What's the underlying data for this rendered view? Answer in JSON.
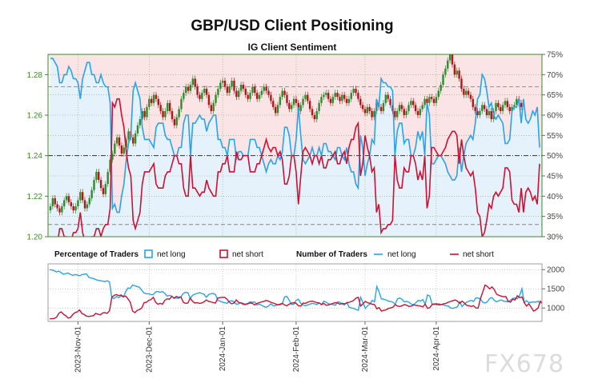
{
  "title": "GBP/USD Client Positioning",
  "subtitle": "IG Client Sentiment",
  "watermark": "FX678",
  "colors": {
    "net_long": "#2aa3e8",
    "net_short": "#cc1133",
    "bg_long": "#e6f2fb",
    "bg_short": "#fbe4e6",
    "candle_up": "#2e8b2e",
    "candle_down": "#b01818",
    "axis_green": "#3d8a2a"
  },
  "legend": {
    "percentage_title": "Percentage of Traders",
    "percentage_long": "net long",
    "percentage_short": "net short",
    "number_title": "Number of Traders",
    "number_long": "net long",
    "number_short": "net short"
  },
  "x_dates": [
    "2023-Nov-01",
    "2023-Dec-01",
    "2024-Jan-01",
    "2024-Feb-01",
    "2024-Mar-01",
    "2024-Apr-01"
  ],
  "chart_data": [
    {
      "type": "line",
      "name": "price_and_percentage",
      "y_left": {
        "ticks": [
          "1.20",
          "1.22",
          "1.24",
          "1.26",
          "1.28"
        ],
        "range": [
          1.2,
          1.29
        ]
      },
      "y_right": {
        "ticks": [
          "30%",
          "35%",
          "40%",
          "45%",
          "50%",
          "55%",
          "60%",
          "65%",
          "70%",
          "75%"
        ],
        "range": [
          30,
          75
        ]
      },
      "reference_lines": {
        "pct_50": 50,
        "pct_33": 33,
        "pct_67": 67
      },
      "net_long_pct": [
        74,
        74,
        73,
        72,
        68,
        68,
        70,
        70,
        72,
        71,
        69,
        69,
        68,
        64,
        69,
        71,
        73,
        73,
        70,
        70,
        68,
        68,
        70,
        68,
        67,
        67,
        63,
        37,
        38,
        36,
        36,
        40,
        43,
        49,
        53,
        55,
        66,
        68,
        66,
        64,
        57,
        54,
        54,
        54,
        53,
        52,
        57,
        58,
        58,
        58,
        55,
        54,
        54,
        52,
        50,
        50,
        52,
        52,
        58,
        60,
        60,
        50,
        58,
        58,
        59,
        60,
        59,
        59,
        56,
        58,
        59,
        60,
        60,
        54,
        54,
        52,
        52,
        50,
        54,
        54,
        54,
        49,
        51,
        51,
        50,
        50,
        50,
        54,
        54,
        54,
        52,
        52,
        50,
        48,
        46,
        48,
        49,
        48,
        48,
        50,
        49,
        51,
        57,
        57,
        55,
        50,
        50,
        54,
        62,
        55,
        49,
        48,
        49,
        50,
        52,
        50,
        50,
        52,
        50,
        53,
        53,
        51,
        51,
        50,
        49,
        52,
        52,
        50,
        49,
        52,
        48,
        46,
        46,
        43,
        42,
        55,
        52,
        45,
        48,
        50,
        54,
        53,
        64,
        62,
        69,
        68,
        68,
        67,
        67,
        66,
        50,
        56,
        58,
        58,
        53,
        54,
        54,
        50,
        50,
        52,
        56,
        54,
        56,
        50,
        63,
        60,
        48,
        48,
        49,
        50,
        50,
        49,
        48,
        46,
        45,
        44,
        44,
        45,
        52,
        46,
        50,
        53,
        54,
        55,
        54,
        58,
        64,
        65,
        70,
        69,
        66,
        62,
        63,
        60,
        59,
        60,
        59,
        58,
        53,
        53,
        54,
        61,
        62,
        62,
        64,
        58,
        64,
        59,
        58,
        59,
        61,
        60,
        62,
        52
      ],
      "net_short_pct": [
        26,
        26,
        27,
        28,
        32,
        32,
        30,
        30,
        28,
        29,
        31,
        31,
        32,
        36,
        31,
        29,
        27,
        27,
        30,
        30,
        32,
        32,
        30,
        32,
        33,
        33,
        37,
        63,
        62,
        64,
        64,
        60,
        57,
        51,
        47,
        45,
        34,
        32,
        34,
        36,
        43,
        46,
        46,
        46,
        47,
        48,
        43,
        42,
        42,
        42,
        45,
        46,
        46,
        48,
        50,
        50,
        48,
        48,
        42,
        40,
        40,
        50,
        42,
        42,
        41,
        40,
        41,
        41,
        44,
        42,
        41,
        40,
        40,
        46,
        46,
        48,
        48,
        50,
        46,
        46,
        46,
        51,
        49,
        49,
        50,
        50,
        50,
        46,
        46,
        46,
        48,
        48,
        50,
        52,
        54,
        52,
        51,
        52,
        52,
        50,
        51,
        49,
        43,
        43,
        45,
        50,
        50,
        46,
        38,
        45,
        51,
        52,
        51,
        50,
        48,
        50,
        50,
        48,
        50,
        47,
        47,
        49,
        49,
        50,
        51,
        48,
        48,
        50,
        51,
        48,
        52,
        54,
        54,
        57,
        58,
        45,
        48,
        55,
        52,
        50,
        46,
        47,
        36,
        38,
        31,
        32,
        32,
        33,
        33,
        34,
        50,
        44,
        42,
        42,
        47,
        46,
        46,
        50,
        50,
        48,
        44,
        46,
        44,
        50,
        37,
        40,
        52,
        52,
        51,
        50,
        50,
        51,
        52,
        54,
        55,
        56,
        56,
        55,
        48,
        54,
        50,
        47,
        46,
        45,
        46,
        42,
        36,
        35,
        30,
        31,
        34,
        38,
        37,
        40,
        41,
        40,
        41,
        42,
        47,
        47,
        46,
        39,
        38,
        38,
        36,
        42,
        36,
        41,
        42,
        41,
        39,
        40,
        38,
        48
      ],
      "price_close": [
        1.215,
        1.219,
        1.216,
        1.214,
        1.212,
        1.215,
        1.218,
        1.22,
        1.217,
        1.215,
        1.213,
        1.215,
        1.218,
        1.222,
        1.218,
        1.214,
        1.216,
        1.219,
        1.223,
        1.228,
        1.232,
        1.228,
        1.224,
        1.221,
        1.226,
        1.232,
        1.238,
        1.241,
        1.246,
        1.249,
        1.245,
        1.241,
        1.244,
        1.248,
        1.252,
        1.249,
        1.246,
        1.251,
        1.255,
        1.258,
        1.262,
        1.259,
        1.264,
        1.268,
        1.266,
        1.27,
        1.268,
        1.265,
        1.262,
        1.259,
        1.262,
        1.266,
        1.262,
        1.258,
        1.255,
        1.259,
        1.263,
        1.268,
        1.271,
        1.274,
        1.272,
        1.275,
        1.278,
        1.274,
        1.27,
        1.268,
        1.271,
        1.273,
        1.27,
        1.265,
        1.262,
        1.266,
        1.27,
        1.273,
        1.276,
        1.277,
        1.274,
        1.271,
        1.274,
        1.277,
        1.272,
        1.269,
        1.272,
        1.275,
        1.273,
        1.27,
        1.268,
        1.271,
        1.274,
        1.271,
        1.268,
        1.27,
        1.272,
        1.274,
        1.272,
        1.27,
        1.267,
        1.264,
        1.261,
        1.265,
        1.269,
        1.272,
        1.27,
        1.266,
        1.263,
        1.265,
        1.268,
        1.266,
        1.262,
        1.265,
        1.268,
        1.27,
        1.267,
        1.263,
        1.26,
        1.258,
        1.262,
        1.266,
        1.269,
        1.27,
        1.271,
        1.268,
        1.266,
        1.269,
        1.271,
        1.269,
        1.267,
        1.27,
        1.268,
        1.266,
        1.268,
        1.271,
        1.273,
        1.271,
        1.268,
        1.265,
        1.263,
        1.261,
        1.264,
        1.262,
        1.259,
        1.262,
        1.266,
        1.264,
        1.262,
        1.266,
        1.27,
        1.268,
        1.265,
        1.262,
        1.259,
        1.262,
        1.265,
        1.263,
        1.26,
        1.262,
        1.265,
        1.267,
        1.265,
        1.262,
        1.26,
        1.263,
        1.265,
        1.268,
        1.266,
        1.269,
        1.268,
        1.266,
        1.269,
        1.272,
        1.275,
        1.28,
        1.283,
        1.287,
        1.29,
        1.285,
        1.28,
        1.282,
        1.278,
        1.273,
        1.27,
        1.272,
        1.27,
        1.268,
        1.264,
        1.262,
        1.26,
        1.262,
        1.265,
        1.263,
        1.26,
        1.262,
        1.258,
        1.262,
        1.266,
        1.264,
        1.262,
        1.265,
        1.267,
        1.264,
        1.262,
        1.264,
        1.265,
        1.268,
        1.266,
        1.264
      ]
    },
    {
      "type": "line",
      "name": "number_of_traders",
      "y": {
        "ticks": [
          "1000",
          "1500",
          "2000"
        ],
        "range": [
          650,
          2150
        ]
      },
      "net_long": [
        2000,
        1990,
        1970,
        1940,
        1960,
        1920,
        1880,
        1900,
        1910,
        1880,
        1850,
        1870,
        1860,
        1840,
        1870,
        1880,
        1890,
        1800,
        1780,
        1770,
        1740,
        1720,
        1710,
        1700,
        1690,
        1710,
        1680,
        1260,
        1250,
        1300,
        1270,
        1310,
        1280,
        1430,
        1520,
        1510,
        1600,
        1580,
        1560,
        1540,
        1460,
        1390,
        1370,
        1370,
        1350,
        1350,
        1420,
        1430,
        1410,
        1430,
        1380,
        1310,
        1330,
        1310,
        1250,
        1260,
        1250,
        1290,
        1380,
        1410,
        1400,
        1250,
        1330,
        1360,
        1380,
        1400,
        1380,
        1360,
        1280,
        1350,
        1370,
        1380,
        1350,
        1200,
        1180,
        1150,
        1140,
        1120,
        1180,
        1190,
        1160,
        1100,
        1110,
        1140,
        1120,
        1100,
        1120,
        1160,
        1150,
        1160,
        1080,
        1100,
        1070,
        1040,
        1020,
        1050,
        1110,
        1060,
        1060,
        1090,
        1080,
        1110,
        1290,
        1300,
        1200,
        1090,
        1100,
        1200,
        1230,
        1120,
        1080,
        1060,
        1080,
        1100,
        1120,
        1110,
        1090,
        1140,
        1090,
        1180,
        1150,
        1110,
        1100,
        1090,
        1070,
        1160,
        1150,
        1100,
        1080,
        1150,
        1020,
        1000,
        990,
        960,
        940,
        1280,
        1140,
        990,
        1060,
        1100,
        1200,
        1160,
        1560,
        1420,
        1240,
        1230,
        1210,
        1180,
        1170,
        1150,
        1100,
        1240,
        1260,
        1220,
        1160,
        1170,
        1150,
        1100,
        1090,
        1140,
        1200,
        1180,
        1220,
        1100,
        1340,
        1310,
        1100,
        1110,
        1080,
        1110,
        1090,
        1080,
        1060,
        1050,
        1000,
        990,
        1010,
        1030,
        1160,
        1040,
        1100,
        1150,
        1180,
        1200,
        1170,
        1260,
        1260,
        1230,
        1150,
        1130,
        1160,
        1250,
        1270,
        1200,
        1160,
        1190,
        1210,
        1180,
        1170,
        1160,
        1200,
        1250,
        1260,
        1240,
        1330,
        1500,
        1140,
        1190,
        1140,
        1150,
        1160,
        1150,
        1180,
        1120
      ],
      "net_short": [
        720,
        720,
        730,
        760,
        860,
        900,
        840,
        800,
        740,
        750,
        830,
        880,
        900,
        950,
        860,
        830,
        790,
        780,
        790,
        800,
        860,
        840,
        820,
        870,
        880,
        860,
        930,
        1280,
        1330,
        1350,
        1320,
        1340,
        1300,
        1310,
        1240,
        1150,
        920,
        880,
        940,
        960,
        1000,
        1140,
        1150,
        1200,
        1220,
        1280,
        1150,
        1100,
        1120,
        1100,
        1200,
        1240,
        1230,
        1300,
        1260,
        1300,
        1280,
        1290,
        1150,
        1120,
        1130,
        1260,
        1180,
        1130,
        1140,
        1120,
        1130,
        1160,
        1210,
        1170,
        1160,
        1140,
        1130,
        1260,
        1270,
        1280,
        1280,
        1230,
        1150,
        1110,
        1130,
        1210,
        1150,
        1130,
        1100,
        1090,
        1110,
        1130,
        1120,
        1080,
        1120,
        1140,
        1160,
        1170,
        1200,
        1180,
        1150,
        1130,
        1110,
        1080,
        1100,
        1120,
        1080,
        1060,
        1100,
        1130,
        1140,
        1120,
        1060,
        1050,
        1130,
        1120,
        1150,
        1170,
        1180,
        1160,
        1140,
        1130,
        1090,
        1120,
        1070,
        1080,
        1100,
        1120,
        1140,
        1130,
        1100,
        1120,
        1110,
        1130,
        1150,
        1170,
        1200,
        1260,
        1280,
        1050,
        1110,
        1170,
        1140,
        1120,
        1100,
        1090,
        980,
        1010,
        920,
        940,
        950,
        990,
        1000,
        1020,
        1090,
        1050,
        1040,
        1060,
        1090,
        1070,
        1040,
        1050,
        1080,
        1070,
        1060,
        1050,
        1030,
        1100,
        990,
        1010,
        1090,
        1100,
        1110,
        1080,
        1090,
        1110,
        1120,
        1150,
        1170,
        1190,
        1210,
        1180,
        1120,
        1180,
        1130,
        1070,
        1060,
        1040,
        1060,
        1000,
        1000,
        1250,
        1420,
        1600,
        1560,
        1500,
        1550,
        1480,
        1360,
        1330,
        1310,
        1290,
        1300,
        1180,
        1150,
        1230,
        1210,
        1320,
        1270,
        1290,
        1140,
        1050,
        1110,
        1020,
        920,
        950,
        1000,
        1180,
        1100,
        1060,
        1080,
        960,
        940,
        1020,
        1040,
        970,
        1040
      ]
    }
  ]
}
